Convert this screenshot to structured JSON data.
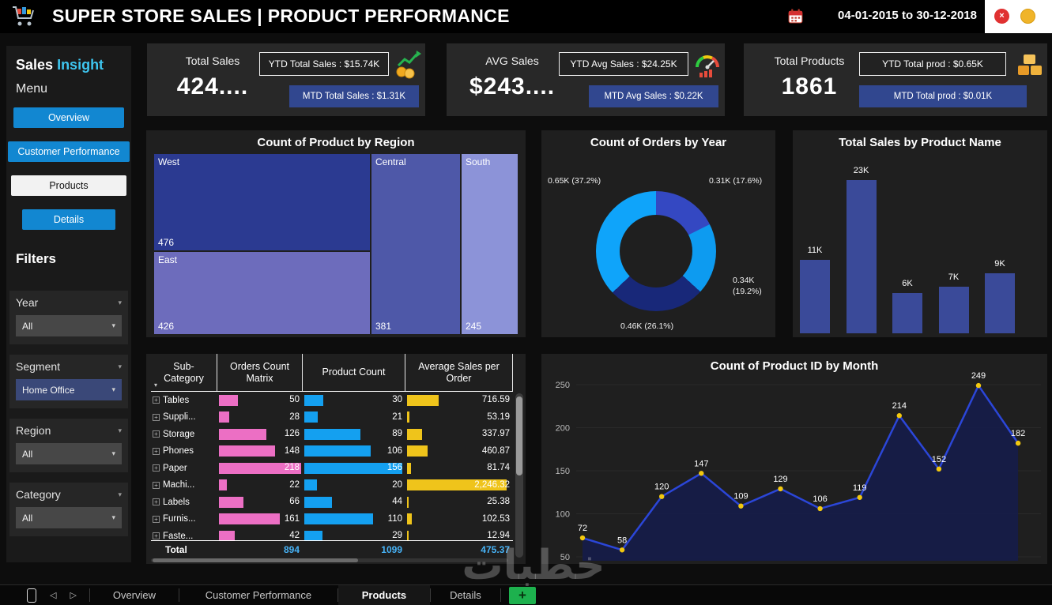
{
  "watermark": "خطبات",
  "header": {
    "title": "SUPER STORE SALES | PRODUCT PERFORMANCE",
    "date_range": "04-01-2015 to 30-12-2018"
  },
  "icons": {
    "chevron_down": "▾",
    "close": "×",
    "left_arrow": "◁",
    "right_arrow": "▷",
    "expand": "+"
  },
  "sidebar": {
    "brand_primary": "Sales",
    "brand_accent": "Insight",
    "menu_label": "Menu",
    "menu_items": [
      {
        "label": "Overview",
        "active": false
      },
      {
        "label": "Customer Performance",
        "active": false
      },
      {
        "label": "Products",
        "active": true
      },
      {
        "label": "Details",
        "active": false
      }
    ],
    "filters_label": "Filters",
    "filters": [
      {
        "label": "Year",
        "value": "All",
        "tinted": false
      },
      {
        "label": "Segment",
        "value": "Home Office",
        "tinted": true
      },
      {
        "label": "Region",
        "value": "All",
        "tinted": false
      },
      {
        "label": "Category",
        "value": "All",
        "tinted": false
      }
    ]
  },
  "kpis": [
    {
      "title": "Total Sales",
      "value": "424....",
      "ytd": "YTD Total Sales : $15.74K",
      "mtd": "MTD Total Sales : $1.31K",
      "icon": "sales-trend-icon"
    },
    {
      "title": "AVG Sales",
      "value": "$243....",
      "ytd": "YTD Avg Sales : $24.25K",
      "mtd": "MTD Avg Sales : $0.22K",
      "icon": "gauge-icon"
    },
    {
      "title": "Total Products",
      "value": "1861",
      "ytd": "YTD Total prod : $0.65K",
      "mtd": "MTD Total prod : $0.01K",
      "icon": "product-stack-icon"
    }
  ],
  "colors": {
    "accent_blue": "#1287D1",
    "mtd_box": "#31478F",
    "brand_accent": "#3EC6F0"
  },
  "chart_data": [
    {
      "id": "treemap",
      "type": "treemap",
      "title": "Count of Product by Region",
      "items": [
        {
          "name": "West",
          "value": 476,
          "color": "#2B3A91"
        },
        {
          "name": "East",
          "value": 426,
          "color": "#6D6CBC"
        },
        {
          "name": "Central",
          "value": 381,
          "color": "#4E58A8"
        },
        {
          "name": "South",
          "value": 245,
          "color": "#8C93D8"
        }
      ]
    },
    {
      "id": "donut",
      "type": "pie",
      "title": "Count of Orders by Year",
      "slices": [
        {
          "label": "0.31K (17.6%)",
          "value": 17.6,
          "color": "#3448C2"
        },
        {
          "label": "0.34K (19.2%)",
          "value": 19.2,
          "color": "#0D9BF0"
        },
        {
          "label": "0.46K (26.1%)",
          "value": 26.1,
          "color": "#182879"
        },
        {
          "label": "0.65K (37.2%)",
          "value": 37.2,
          "color": "#0FA4FA"
        }
      ]
    },
    {
      "id": "bars",
      "type": "bar",
      "title": "Total Sales by Product Name",
      "labels": [
        "11K",
        "23K",
        "6K",
        "7K",
        "9K"
      ],
      "values": [
        11,
        23,
        6,
        7,
        9
      ],
      "ymax": 23,
      "bar_color": "#3A4A99"
    },
    {
      "id": "matrix",
      "type": "table",
      "headers": [
        "Sub-Category",
        "Orders Count Matrix",
        "Product Count",
        "Average Sales per Order"
      ],
      "rows": [
        {
          "name": "Tables",
          "orders": 50,
          "products": 30,
          "avg": "716.59"
        },
        {
          "name": "Suppli...",
          "orders": 28,
          "products": 21,
          "avg": "53.19"
        },
        {
          "name": "Storage",
          "orders": 126,
          "products": 89,
          "avg": "337.97"
        },
        {
          "name": "Phones",
          "orders": 148,
          "products": 106,
          "avg": "460.87"
        },
        {
          "name": "Paper",
          "orders": 218,
          "products": 156,
          "avg": "81.74"
        },
        {
          "name": "Machi...",
          "orders": 22,
          "products": 20,
          "avg": "2,246.32"
        },
        {
          "name": "Labels",
          "orders": 66,
          "products": 44,
          "avg": "25.38"
        },
        {
          "name": "Furnis...",
          "orders": 161,
          "products": 110,
          "avg": "102.53"
        },
        {
          "name": "Faste...",
          "orders": 42,
          "products": 29,
          "avg": "12.94"
        }
      ],
      "totals": {
        "name": "Total",
        "orders": "894",
        "products": "1099",
        "avg": "475.37"
      },
      "maxes": {
        "orders": 218,
        "products": 156,
        "avg": 2246.32
      },
      "bar_colors": {
        "orders": "#EC6FC4",
        "products": "#14A0F0",
        "avg": "#EFC41B"
      }
    },
    {
      "id": "line",
      "type": "area",
      "title": "Count of Product ID by Month",
      "values": [
        72,
        58,
        120,
        147,
        109,
        129,
        106,
        119,
        214,
        152,
        249,
        182
      ],
      "y_ticks": [
        250,
        200,
        150,
        100,
        50
      ],
      "y_min": 50,
      "line_color": "#2B46D8",
      "fill_color": "#161C49",
      "marker_color": "#F2C80F"
    }
  ],
  "bottom_bar": {
    "tabs": [
      {
        "label": "Overview",
        "active": false
      },
      {
        "label": "Customer Performance",
        "active": false
      },
      {
        "label": "Products",
        "active": true
      },
      {
        "label": "Details",
        "active": false
      }
    ],
    "add_label": "+"
  }
}
